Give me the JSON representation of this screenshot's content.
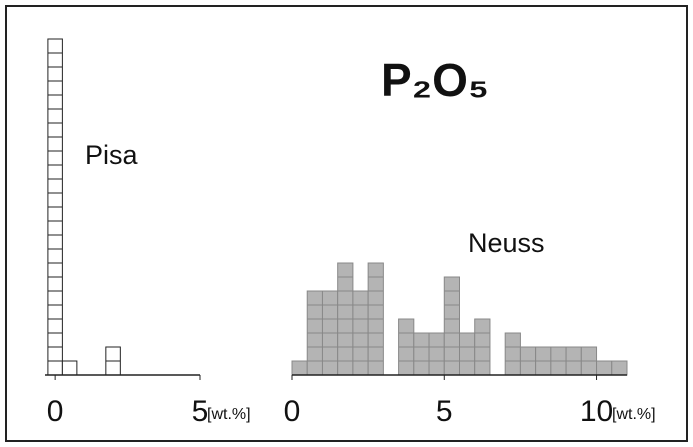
{
  "chart_data": [
    {
      "type": "histogram",
      "label": "Pisa",
      "xlabel": "[wt.%]",
      "bins": [
        -0.25,
        0.25,
        0.75,
        1.25,
        1.75,
        2.25
      ],
      "counts": [
        24,
        1,
        0,
        0,
        2
      ],
      "color": "#ffffff",
      "xlim": [
        -0.35,
        5
      ],
      "ylim": [
        0,
        25
      ],
      "xticks": [
        0,
        5
      ]
    },
    {
      "type": "histogram",
      "title": "P₂O₅",
      "label": "Neuss",
      "xlabel": "[wt.%]",
      "bins": [
        0,
        0.5,
        1,
        1.5,
        2,
        2.5,
        3,
        3.5,
        4,
        4.5,
        5,
        5.5,
        6,
        6.5,
        7,
        7.5,
        8,
        8.5,
        9,
        9.5,
        10,
        10.5,
        11
      ],
      "counts": [
        1,
        6,
        6,
        8,
        6,
        8,
        0,
        4,
        3,
        3,
        7,
        3,
        4,
        0,
        3,
        2,
        2,
        2,
        2,
        2,
        1,
        1
      ],
      "color": "#b4b4b4",
      "xlim": [
        0,
        11
      ],
      "ylim": [
        0,
        25
      ],
      "xticks": [
        0,
        5,
        10
      ]
    }
  ]
}
